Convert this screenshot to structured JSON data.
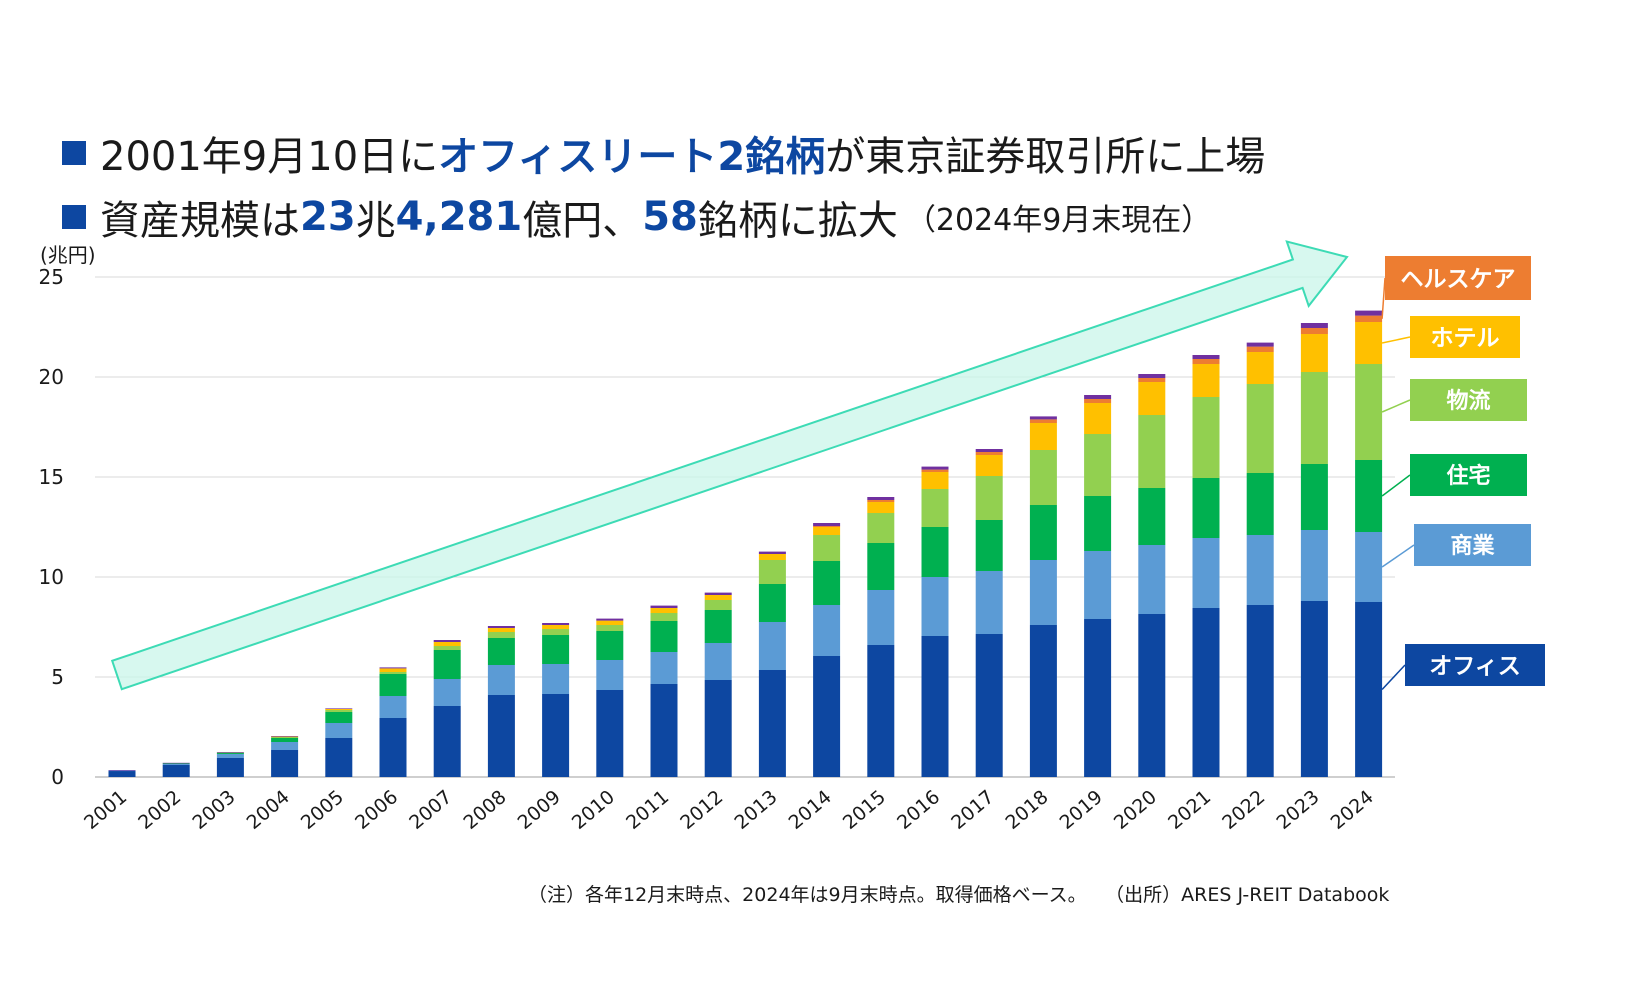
{
  "headline": {
    "line1": {
      "prefix": "2001年9月10日に",
      "highlight": "オフィスリート2銘柄",
      "suffix": "が東京証券取引所に上場"
    },
    "line2": {
      "part1": "資産規模は",
      "hl1": "23",
      "part2": "兆",
      "hl2": "4,281",
      "part3": "億円、",
      "hl3": "58",
      "part4": "銘柄に拡大",
      "date_note": "（2024年9月末現在）"
    }
  },
  "footnote": {
    "note": "（注）各年12月末時点、2024年は9月末時点。取得価格ベース。",
    "source": "（出所）ARES J-REIT Databook"
  },
  "colors": {
    "headline_accent": "#0d47a1",
    "arrow_fill": "#c9f5ea",
    "arrow_stroke": "#3ddbb5",
    "gridline": "#d9d9d9"
  },
  "chart_data": {
    "type": "bar",
    "stacked": true,
    "unit_label": "(兆円)",
    "ylim": [
      0,
      25
    ],
    "yticks": [
      0,
      5,
      10,
      15,
      20,
      25
    ],
    "grid": true,
    "categories": [
      "2001",
      "2002",
      "2003",
      "2004",
      "2005",
      "2006",
      "2007",
      "2008",
      "2009",
      "2010",
      "2011",
      "2012",
      "2013",
      "2014",
      "2015",
      "2016",
      "2017",
      "2018",
      "2019",
      "2020",
      "2021",
      "2022",
      "2023",
      "2024"
    ],
    "series": [
      {
        "name": "オフィス",
        "color": "#0d47a1",
        "label_bg": "#0d47a1",
        "values": [
          0.3,
          0.6,
          0.95,
          1.35,
          1.95,
          2.95,
          3.55,
          4.1,
          4.15,
          4.35,
          4.65,
          4.85,
          5.35,
          6.05,
          6.6,
          7.05,
          7.15,
          7.6,
          7.9,
          8.15,
          8.45,
          8.6,
          8.8,
          8.75
        ]
      },
      {
        "name": "商業",
        "color": "#5b9bd5",
        "label_bg": "#5b9bd5",
        "values": [
          0.02,
          0.05,
          0.2,
          0.4,
          0.75,
          1.1,
          1.35,
          1.5,
          1.5,
          1.5,
          1.6,
          1.85,
          2.4,
          2.55,
          2.75,
          2.95,
          3.15,
          3.25,
          3.4,
          3.45,
          3.5,
          3.5,
          3.55,
          3.5
        ]
      },
      {
        "name": "住宅",
        "color": "#00b050",
        "label_bg": "#00b050",
        "values": [
          0,
          0.03,
          0.05,
          0.2,
          0.55,
          1.1,
          1.45,
          1.35,
          1.45,
          1.45,
          1.55,
          1.65,
          1.9,
          2.2,
          2.35,
          2.5,
          2.55,
          2.75,
          2.75,
          2.85,
          3.0,
          3.1,
          3.3,
          3.6
        ]
      },
      {
        "name": "物流",
        "color": "#92d050",
        "label_bg": "#92d050",
        "values": [
          0,
          0,
          0.02,
          0.05,
          0.1,
          0.1,
          0.2,
          0.3,
          0.3,
          0.3,
          0.4,
          0.5,
          1.2,
          1.3,
          1.5,
          1.9,
          2.2,
          2.75,
          3.1,
          3.65,
          4.05,
          4.45,
          4.6,
          4.8
        ]
      },
      {
        "name": "ホテル",
        "color": "#ffc000",
        "label_bg": "#ffc000",
        "values": [
          0,
          0,
          0,
          0.02,
          0.05,
          0.18,
          0.2,
          0.2,
          0.2,
          0.22,
          0.25,
          0.25,
          0.3,
          0.4,
          0.55,
          0.85,
          1.05,
          1.35,
          1.55,
          1.65,
          1.65,
          1.6,
          1.9,
          2.1
        ]
      },
      {
        "name": "ヘルスケア",
        "color": "#ed7d31",
        "label_bg": "#ed7d31",
        "values": [
          0,
          0,
          0,
          0,
          0,
          0,
          0,
          0,
          0,
          0,
          0,
          0,
          0,
          0.05,
          0.1,
          0.12,
          0.15,
          0.18,
          0.2,
          0.2,
          0.25,
          0.27,
          0.3,
          0.32
        ]
      },
      {
        "name": "",
        "color": "#7030a0",
        "values": [
          0.03,
          0.03,
          0.03,
          0.03,
          0.03,
          0.05,
          0.1,
          0.1,
          0.1,
          0.1,
          0.12,
          0.12,
          0.12,
          0.15,
          0.15,
          0.15,
          0.15,
          0.15,
          0.2,
          0.2,
          0.2,
          0.2,
          0.25,
          0.25
        ]
      }
    ]
  }
}
